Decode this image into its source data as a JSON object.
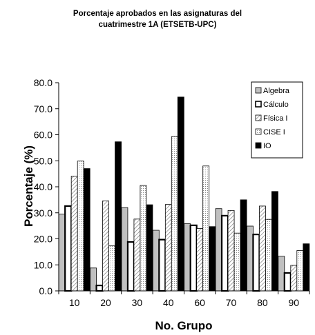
{
  "chart_data": {
    "type": "bar",
    "title_lines": [
      "Porcentaje aprobados en las asignaturas del",
      "cuatrimestre 1A (ETSETB-UPC)"
    ],
    "xlabel": "No. Grupo",
    "ylabel": "Porcentaje (%)",
    "ylim": [
      0,
      80
    ],
    "ytick_step": 10,
    "ytick_format": "0.0",
    "categories": [
      "10",
      "20",
      "30",
      "40",
      "60",
      "70",
      "80",
      "90"
    ],
    "legend_position": "top-right",
    "grid": false,
    "series": [
      {
        "name": "Algebra",
        "pattern": "gray",
        "values": [
          29.5,
          8.8,
          32.0,
          23.3,
          25.8,
          31.6,
          24.9,
          13.3
        ]
      },
      {
        "name": "Cálculo",
        "pattern": "white-thick",
        "values": [
          32.6,
          2.1,
          18.8,
          19.7,
          25.2,
          28.9,
          21.7,
          6.9
        ]
      },
      {
        "name": "Física I",
        "pattern": "hatch",
        "values": [
          44.1,
          34.6,
          27.6,
          33.2,
          24.0,
          30.9,
          32.6,
          9.8
        ]
      },
      {
        "name": "CISE I",
        "pattern": "dotted",
        "values": [
          49.9,
          17.3,
          40.5,
          59.3,
          48.0,
          22.2,
          27.5,
          15.5
        ]
      },
      {
        "name": "IO",
        "pattern": "black",
        "values": [
          47.0,
          57.3,
          33.1,
          74.5,
          24.7,
          35.0,
          38.2,
          18.1
        ]
      }
    ]
  }
}
